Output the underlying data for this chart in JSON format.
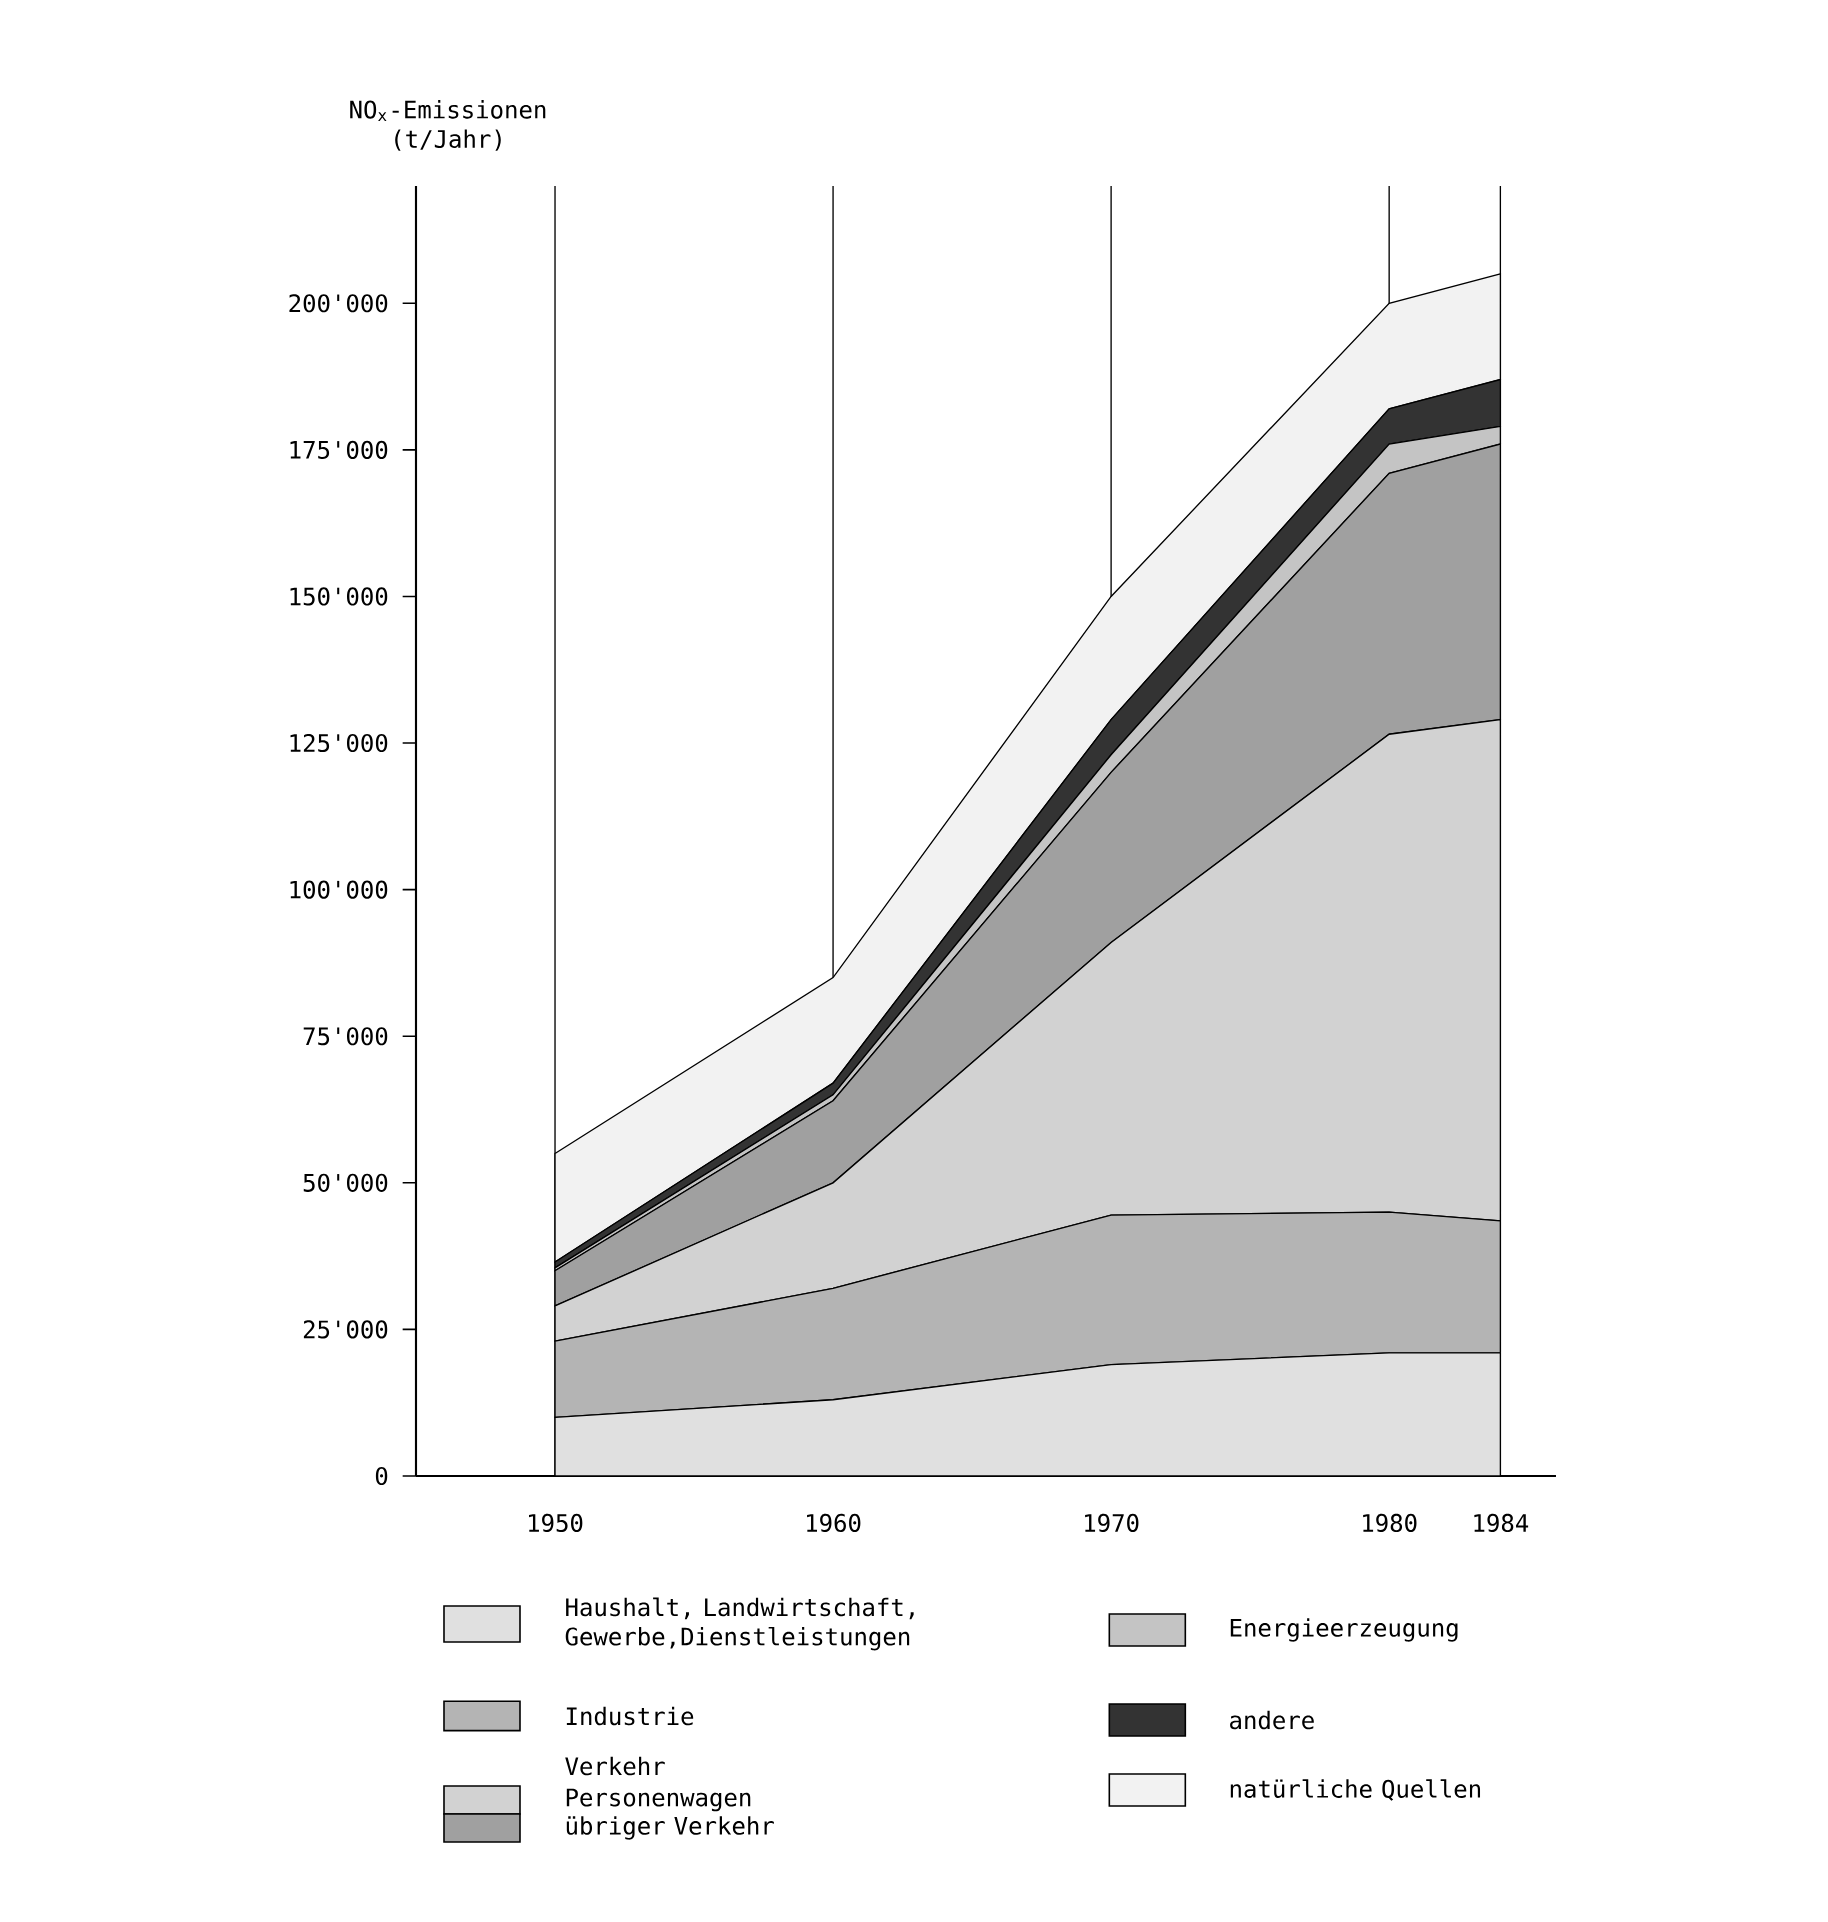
{
  "chart_data": {
    "type": "area",
    "stacked": true,
    "ylabel": "NO$_{x}$-Emissionen (t/Jahr)",
    "x": [
      1950,
      1960,
      1970,
      1980,
      1984
    ],
    "xlim": [
      1945,
      1986
    ],
    "xticks": [
      1950,
      1960,
      1970,
      1980,
      1984
    ],
    "ylim": [
      0,
      220000
    ],
    "yticks": [
      0,
      {
        "value": 25000,
        "label": "25'000"
      },
      {
        "value": 50000,
        "label": "50'000"
      },
      {
        "value": 75000,
        "label": "75'000"
      },
      {
        "value": 100000,
        "label": "100'000"
      },
      {
        "value": 125000,
        "label": "125'000"
      },
      {
        "value": 150000,
        "label": "150'000"
      },
      {
        "value": 175000,
        "label": "175'000"
      },
      {
        "value": 200000,
        "label": "200'000"
      }
    ],
    "grid": "x",
    "legend": "bottom",
    "marker": "none",
    "annotations": [
      "Verkehr"
    ],
    "series": [
      {
        "name": "Haushalt, Landwirtschaft, Gewerbe,Dienstleistungen",
        "color": "#e0e0e0",
        "values": [
          10000,
          13000,
          19000,
          21000,
          21000
        ]
      },
      {
        "name": "Industrie",
        "color": "#b4b4b4",
        "values": [
          13000,
          19000,
          25500,
          24000,
          22500
        ]
      },
      {
        "name": "Personenwagen",
        "color": "#d2d2d2",
        "values": [
          6000,
          18000,
          46500,
          81500,
          85500
        ]
      },
      {
        "name": "übriger Verkehr",
        "color": "#a0a0a0",
        "values": [
          6000,
          14000,
          29000,
          44500,
          47000
        ]
      },
      {
        "name": "Energieerzeugung",
        "color": "#c4c4c4",
        "values": [
          500,
          1000,
          3000,
          5000,
          3000
        ]
      },
      {
        "name": "andere",
        "color": "#333333",
        "values": [
          1000,
          2000,
          6000,
          6000,
          8000
        ]
      },
      {
        "name": "natürliche Quellen",
        "color": "#f2f2f2",
        "values": [
          18500,
          18000,
          21000,
          18000,
          18000
        ]
      }
    ]
  }
}
